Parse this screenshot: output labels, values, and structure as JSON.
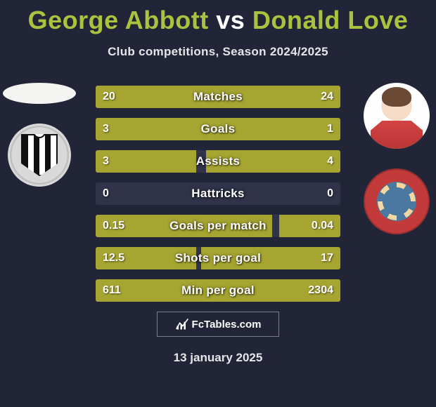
{
  "title": {
    "player1": "George Abbott",
    "vs": "vs",
    "player2": "Donald Love"
  },
  "subtitle": "Club competitions, Season 2024/2025",
  "colors": {
    "bg": "#222537",
    "bar_track": "#303349",
    "bar_fill": "#a6a531",
    "accent_name": "#abc23e"
  },
  "rows": [
    {
      "label": "Matches",
      "left_val": "20",
      "right_val": "24",
      "left_pct": 40,
      "right_pct": 60
    },
    {
      "label": "Goals",
      "left_val": "3",
      "right_val": "1",
      "left_pct": 75,
      "right_pct": 25
    },
    {
      "label": "Assists",
      "left_val": "3",
      "right_val": "4",
      "left_pct": 41,
      "right_pct": 55
    },
    {
      "label": "Hattricks",
      "left_val": "0",
      "right_val": "0",
      "left_pct": 0,
      "right_pct": 0
    },
    {
      "label": "Goals per match",
      "left_val": "0.15",
      "right_val": "0.04",
      "left_pct": 72,
      "right_pct": 25
    },
    {
      "label": "Shots per goal",
      "left_val": "12.5",
      "right_val": "17",
      "left_pct": 41,
      "right_pct": 57
    },
    {
      "label": "Min per goal",
      "left_val": "611",
      "right_val": "2304",
      "left_pct": 21,
      "right_pct": 79
    }
  ],
  "brand": "FcTables.com",
  "date": "13 january 2025",
  "left": {
    "player_name": "George Abbott",
    "club_name": "Notts County"
  },
  "right": {
    "player_name": "Donald Love",
    "club_name": "Accrington Stanley"
  }
}
